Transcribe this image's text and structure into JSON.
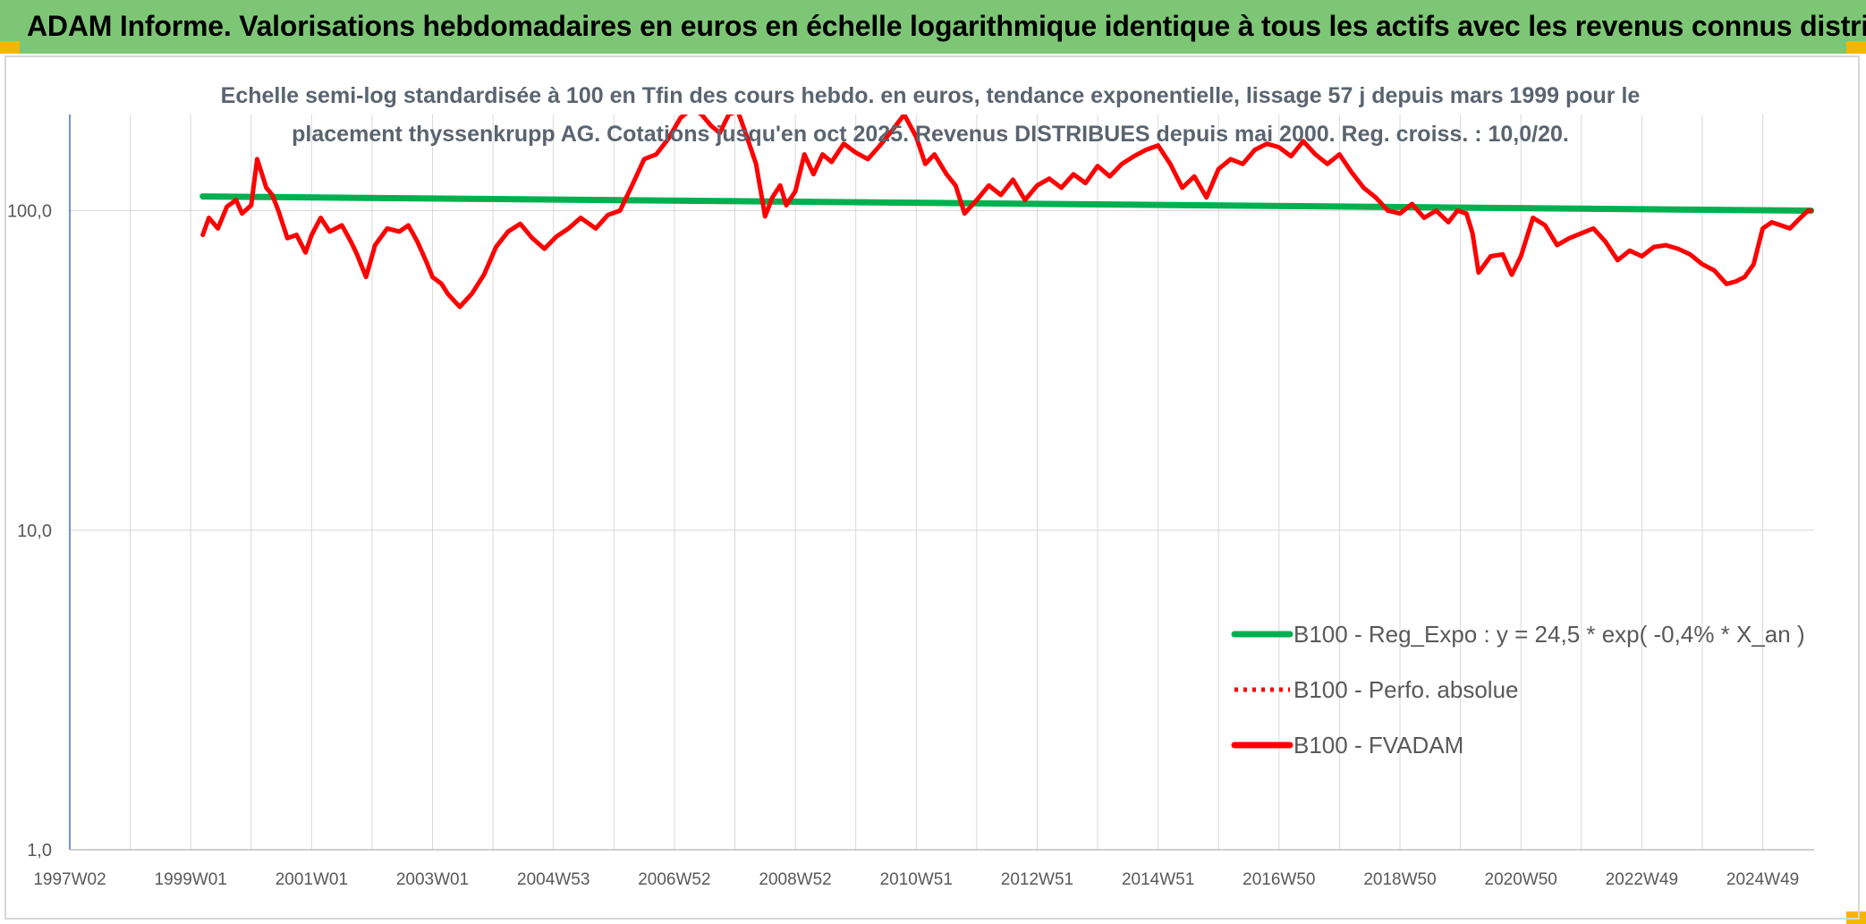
{
  "header": {
    "title": "ADAM Informe. Valorisations hebdomadaires en euros en échelle logarithmique identique à tous les actifs avec les revenus connus distribués"
  },
  "chart_data": {
    "type": "line",
    "title": "Echelle semi-log standardisée à 100 en Tfin des cours hebdo. en euros, tendance exponentielle, lissage 57 j depuis mars 1999 pour le placement thyssenkrupp AG. Cotations jusqu'en oct 2025. Revenus DISTRIBUES depuis mai 2000. Reg. croiss. : 10,0/20.",
    "y_scale": "log",
    "ylim": [
      1,
      200
    ],
    "y_ticks": [
      {
        "value": 1,
        "label": "1,0"
      },
      {
        "value": 10,
        "label": "10,0"
      },
      {
        "value": 100,
        "label": "100,0"
      }
    ],
    "x_range": [
      1997.0,
      2025.85
    ],
    "x_ticks": [
      {
        "value": 1997.0,
        "label": "1997W02"
      },
      {
        "value": 1999.0,
        "label": "1999W01"
      },
      {
        "value": 2001.0,
        "label": "2001W01"
      },
      {
        "value": 2003.0,
        "label": "2003W01"
      },
      {
        "value": 2005.0,
        "label": "2004W53"
      },
      {
        "value": 2007.0,
        "label": "2006W52"
      },
      {
        "value": 2009.0,
        "label": "2008W52"
      },
      {
        "value": 2011.0,
        "label": "2010W51"
      },
      {
        "value": 2013.0,
        "label": "2012W51"
      },
      {
        "value": 2015.0,
        "label": "2014W51"
      },
      {
        "value": 2017.0,
        "label": "2016W50"
      },
      {
        "value": 2019.0,
        "label": "2018W50"
      },
      {
        "value": 2021.0,
        "label": "2020W50"
      },
      {
        "value": 2023.0,
        "label": "2022W49"
      },
      {
        "value": 2025.0,
        "label": "2024W49"
      }
    ],
    "grid": "vertical and horizontal",
    "legend_position": "bottom-right",
    "series": [
      {
        "name": "B100 - Reg_Expo : y = 24,5 * exp( -0,4% *  X_an )",
        "color": "#00b050",
        "style": "solid",
        "x": [
          1999.2,
          2025.8
        ],
        "y": [
          110.8,
          100.0
        ]
      },
      {
        "name": "B100 - Perfo. absolue",
        "color": "#ff0000",
        "style": "dotted",
        "x": [],
        "y": []
      },
      {
        "name": "B100 - FVADAM",
        "color": "#ff0000",
        "style": "solid",
        "x": [
          1999.2,
          1999.3,
          1999.45,
          1999.6,
          1999.75,
          1999.85,
          2000.0,
          2000.1,
          2000.25,
          2000.35,
          2000.45,
          2000.6,
          2000.75,
          2000.9,
          2001.0,
          2001.15,
          2001.3,
          2001.5,
          2001.65,
          2001.75,
          2001.9,
          2002.05,
          2002.25,
          2002.45,
          2002.6,
          2002.75,
          2002.9,
          2003.0,
          2003.15,
          2003.25,
          2003.45,
          2003.65,
          2003.85,
          2004.05,
          2004.25,
          2004.45,
          2004.65,
          2004.85,
          2005.05,
          2005.25,
          2005.45,
          2005.7,
          2005.9,
          2006.1,
          2006.3,
          2006.5,
          2006.7,
          2006.9,
          2007.1,
          2007.3,
          2007.45,
          2007.6,
          2007.75,
          2007.9,
          2008.05,
          2008.2,
          2008.35,
          2008.5,
          2008.62,
          2008.75,
          2008.85,
          2009.0,
          2009.15,
          2009.3,
          2009.45,
          2009.6,
          2009.8,
          2010.0,
          2010.2,
          2010.4,
          2010.6,
          2010.8,
          2011.0,
          2011.15,
          2011.3,
          2011.5,
          2011.65,
          2011.8,
          2012.0,
          2012.2,
          2012.4,
          2012.6,
          2012.8,
          2013.0,
          2013.2,
          2013.4,
          2013.6,
          2013.8,
          2014.0,
          2014.2,
          2014.4,
          2014.6,
          2014.8,
          2015.0,
          2015.2,
          2015.4,
          2015.6,
          2015.8,
          2016.0,
          2016.2,
          2016.4,
          2016.6,
          2016.8,
          2017.0,
          2017.2,
          2017.4,
          2017.6,
          2017.8,
          2018.0,
          2018.2,
          2018.4,
          2018.6,
          2018.8,
          2019.0,
          2019.2,
          2019.4,
          2019.6,
          2019.8,
          2019.95,
          2020.1,
          2020.2,
          2020.3,
          2020.5,
          2020.7,
          2020.85,
          2021.0,
          2021.2,
          2021.4,
          2021.6,
          2021.8,
          2022.0,
          2022.2,
          2022.4,
          2022.6,
          2022.8,
          2023.0,
          2023.2,
          2023.4,
          2023.6,
          2023.8,
          2024.0,
          2024.2,
          2024.4,
          2024.55,
          2024.7,
          2024.85,
          2025.0,
          2025.15,
          2025.3,
          2025.45,
          2025.6,
          2025.75,
          2025.8
        ],
        "y": [
          84,
          95,
          88,
          103,
          108,
          98,
          104,
          145,
          118,
          112,
          100,
          82,
          84,
          74,
          84,
          95,
          86,
          90,
          80,
          73,
          62,
          78,
          88,
          86,
          90,
          80,
          69,
          62,
          59,
          55,
          50,
          55,
          63,
          77,
          86,
          91,
          82,
          76,
          83,
          88,
          95,
          88,
          97,
          100,
          120,
          145,
          150,
          168,
          195,
          210,
          200,
          185,
          175,
          200,
          205,
          170,
          140,
          96,
          110,
          120,
          104,
          115,
          150,
          130,
          150,
          142,
          162,
          152,
          145,
          160,
          178,
          200,
          170,
          140,
          150,
          130,
          120,
          98,
          108,
          120,
          112,
          125,
          108,
          120,
          126,
          118,
          130,
          122,
          138,
          128,
          140,
          148,
          155,
          160,
          140,
          118,
          128,
          110,
          135,
          145,
          140,
          155,
          162,
          158,
          148,
          165,
          150,
          140,
          150,
          132,
          118,
          110,
          100,
          98,
          105,
          95,
          100,
          92,
          100,
          98,
          85,
          64,
          72,
          73,
          63,
          72,
          95,
          90,
          78,
          82,
          85,
          88,
          80,
          70,
          75,
          72,
          77,
          78,
          76,
          73,
          68,
          65,
          59,
          60,
          62,
          68,
          88,
          92,
          90,
          88,
          94,
          100,
          100
        ]
      }
    ]
  }
}
